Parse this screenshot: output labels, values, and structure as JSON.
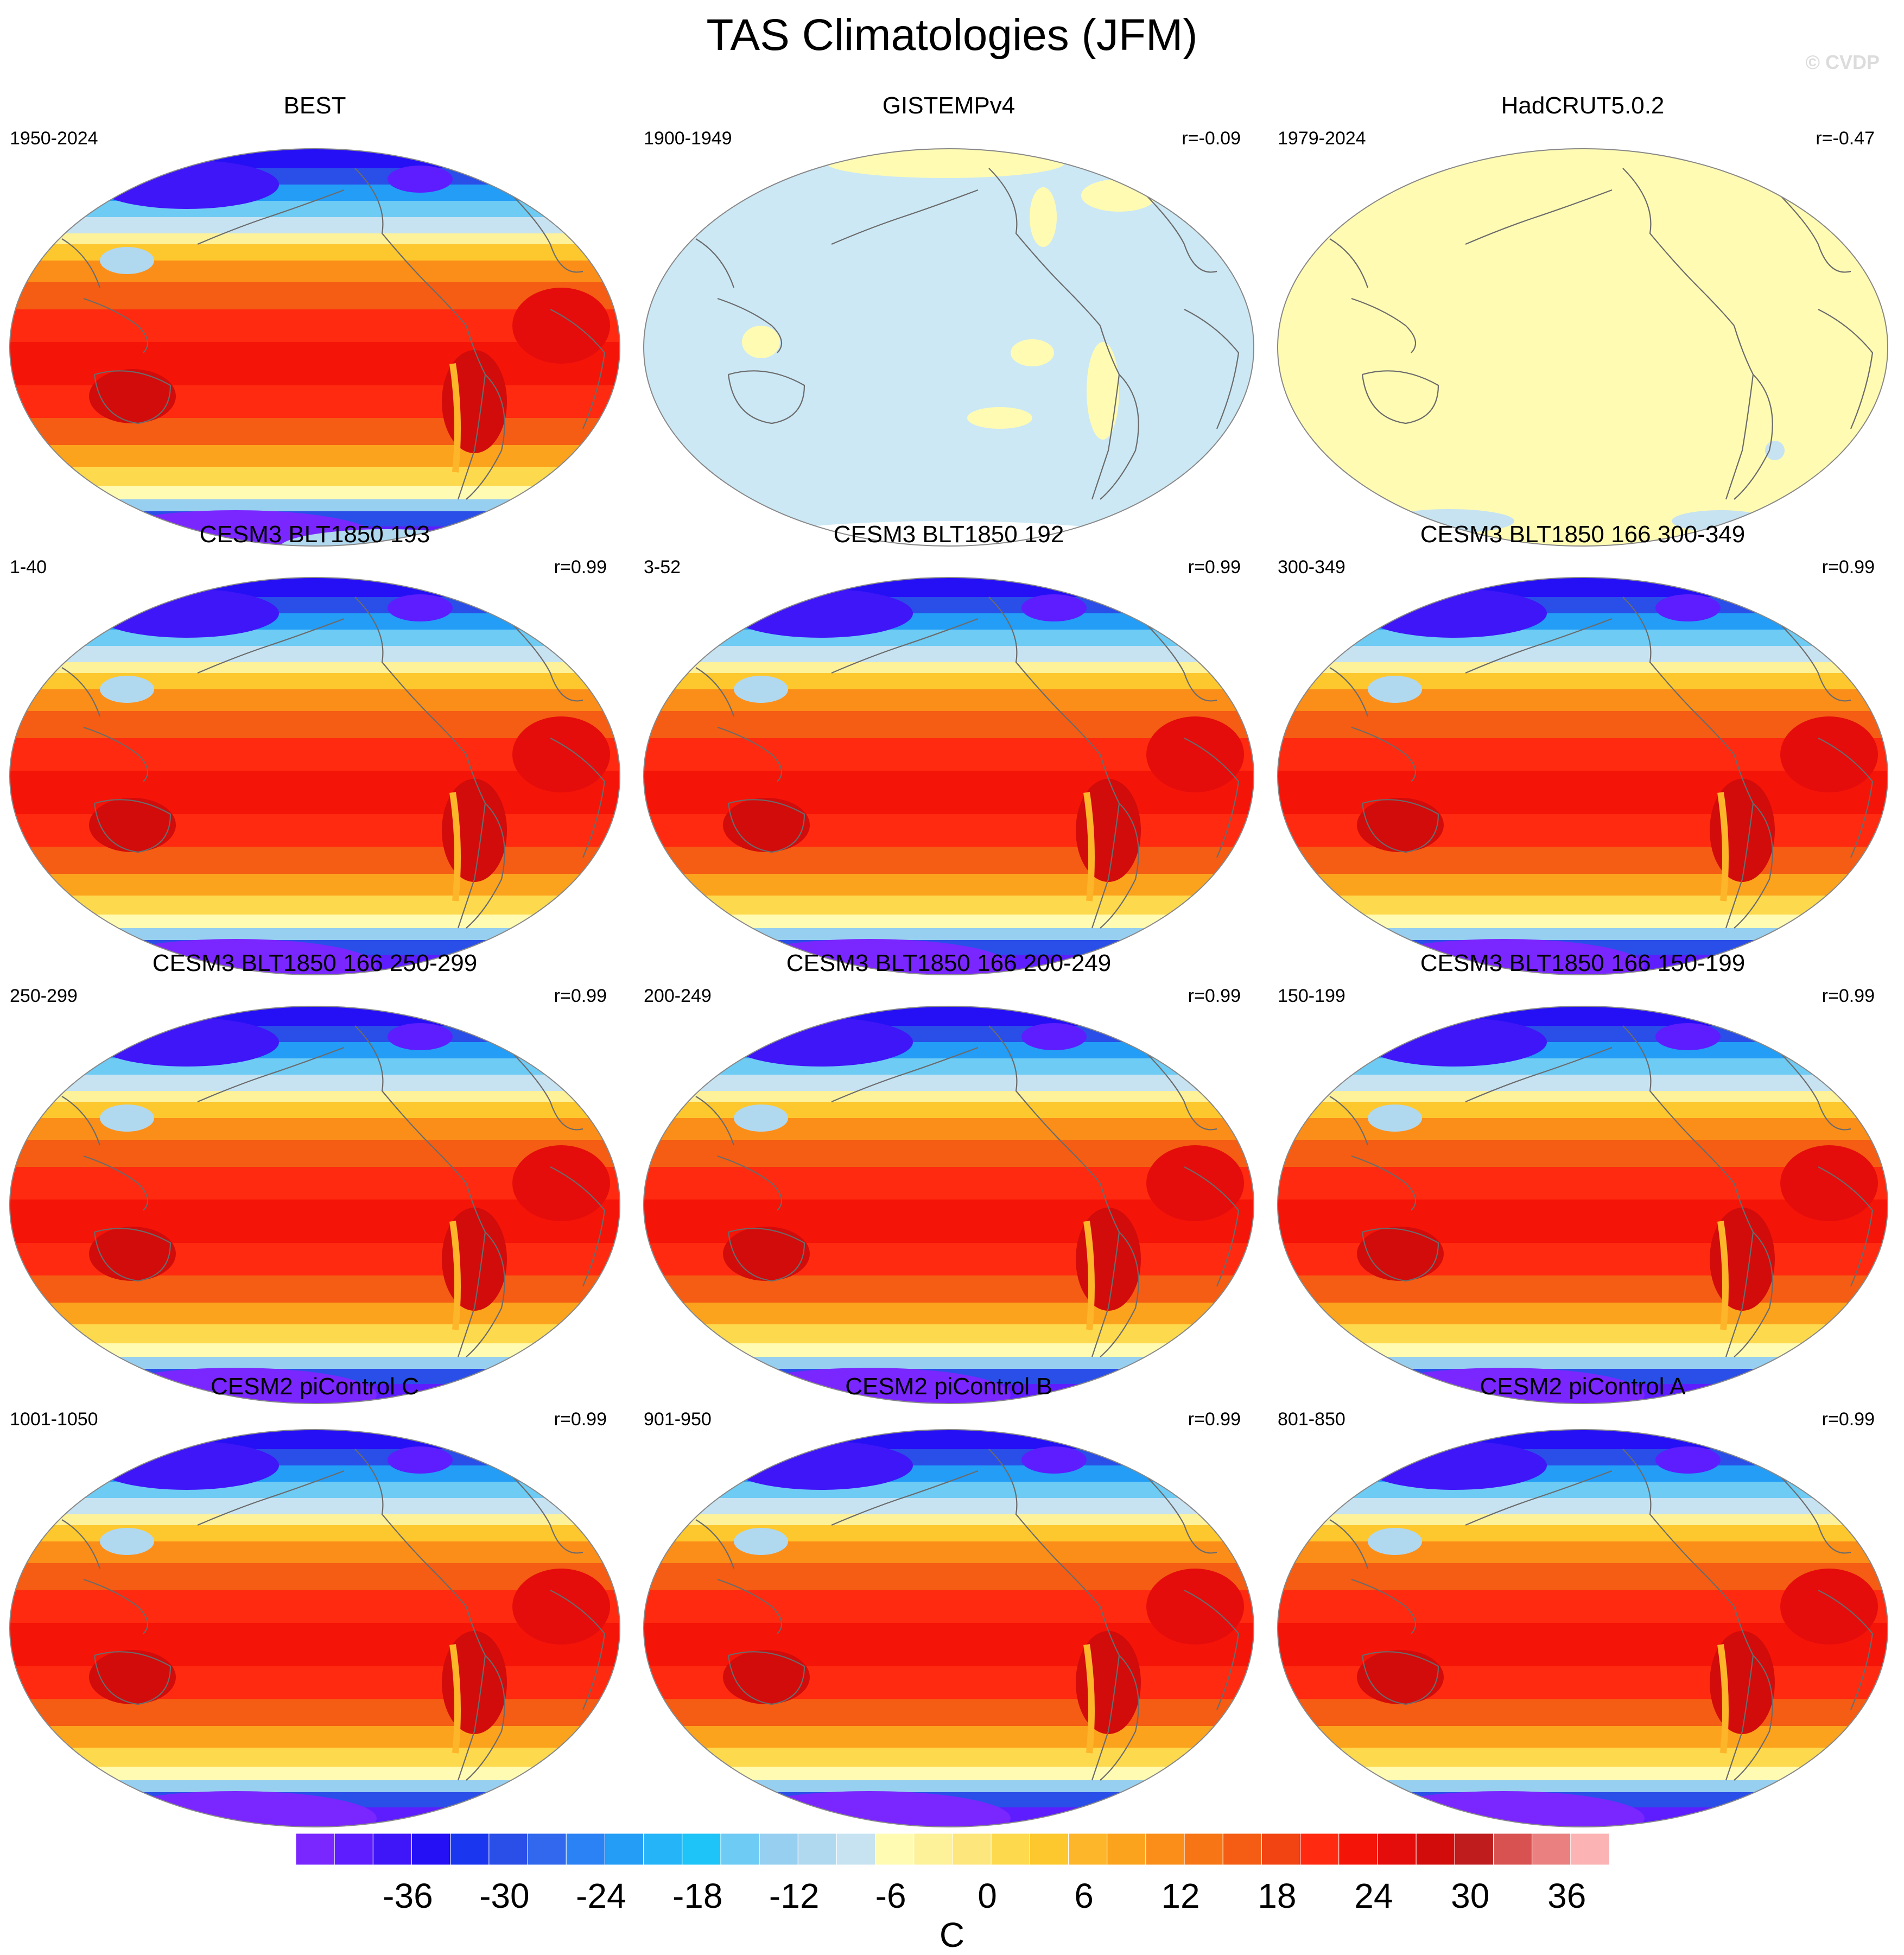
{
  "title": "TAS Climatologies (JFM)",
  "copyright": "© CVDP",
  "colors": {
    "levels": [
      "#7a26ff",
      "#5d1dfe",
      "#3f16f7",
      "#2510f5",
      "#1a36ef",
      "#2a4ee8",
      "#3168ee",
      "#2b82f4",
      "#239df6",
      "#25b4f8",
      "#1ec3f8",
      "#6ecbf4",
      "#96cff0",
      "#b0d8ef",
      "#c7e3f2",
      "#fffbb3",
      "#fdf19a",
      "#fde67c",
      "#fdd94e",
      "#fdc82e",
      "#fdb52a",
      "#fca31e",
      "#fb8e19",
      "#f87516",
      "#f45d13",
      "#f24412",
      "#ff2a0f",
      "#f51408",
      "#e50c0c",
      "#d20b0b",
      "#bf1d1d",
      "#d85252",
      "#ea8080",
      "#fbb3b3"
    ],
    "ocean_fill": "#cce8f5",
    "pale_fill": "#fffbb3"
  },
  "panels": [
    {
      "id": "best",
      "title": "BEST",
      "period": "1950-2024",
      "r": "",
      "style": "obs"
    },
    {
      "id": "gistemp",
      "title": "GISTEMPv4",
      "period": "1900-1949",
      "r": "r=-0.09",
      "style": "blue_anom"
    },
    {
      "id": "hadcrut",
      "title": "HadCRUT5.0.2",
      "period": "1979-2024",
      "r": "r=-0.47",
      "style": "pale"
    },
    {
      "id": "cesm3_193",
      "title": "CESM3 BLT1850 193",
      "period": "1-40",
      "r": "r=0.99",
      "style": "model"
    },
    {
      "id": "cesm3_192",
      "title": "CESM3 BLT1850 192",
      "period": "3-52",
      "r": "r=0.99",
      "style": "model"
    },
    {
      "id": "cesm3_166_300",
      "title": "CESM3 BLT1850 166 300-349",
      "period": "300-349",
      "r": "r=0.99",
      "style": "model"
    },
    {
      "id": "cesm3_166_250",
      "title": "CESM3 BLT1850 166 250-299",
      "period": "250-299",
      "r": "r=0.99",
      "style": "model"
    },
    {
      "id": "cesm3_166_200",
      "title": "CESM3 BLT1850 166 200-249",
      "period": "200-249",
      "r": "r=0.99",
      "style": "model"
    },
    {
      "id": "cesm3_166_150",
      "title": "CESM3 BLT1850 166 150-199",
      "period": "150-199",
      "r": "r=0.99",
      "style": "model"
    },
    {
      "id": "cesm2_c",
      "title": "CESM2 piControl C",
      "period": "1001-1050",
      "r": "r=0.99",
      "style": "model"
    },
    {
      "id": "cesm2_b",
      "title": "CESM2 piControl B",
      "period": "901-950",
      "r": "r=0.99",
      "style": "model"
    },
    {
      "id": "cesm2_a",
      "title": "CESM2 piControl A",
      "period": "801-850",
      "r": "r=0.99",
      "style": "model"
    }
  ],
  "colorbar": {
    "ticks": [
      "-36",
      "-30",
      "-24",
      "-18",
      "-12",
      "-6",
      "0",
      "6",
      "12",
      "18",
      "24",
      "30",
      "36"
    ],
    "units": "C"
  }
}
